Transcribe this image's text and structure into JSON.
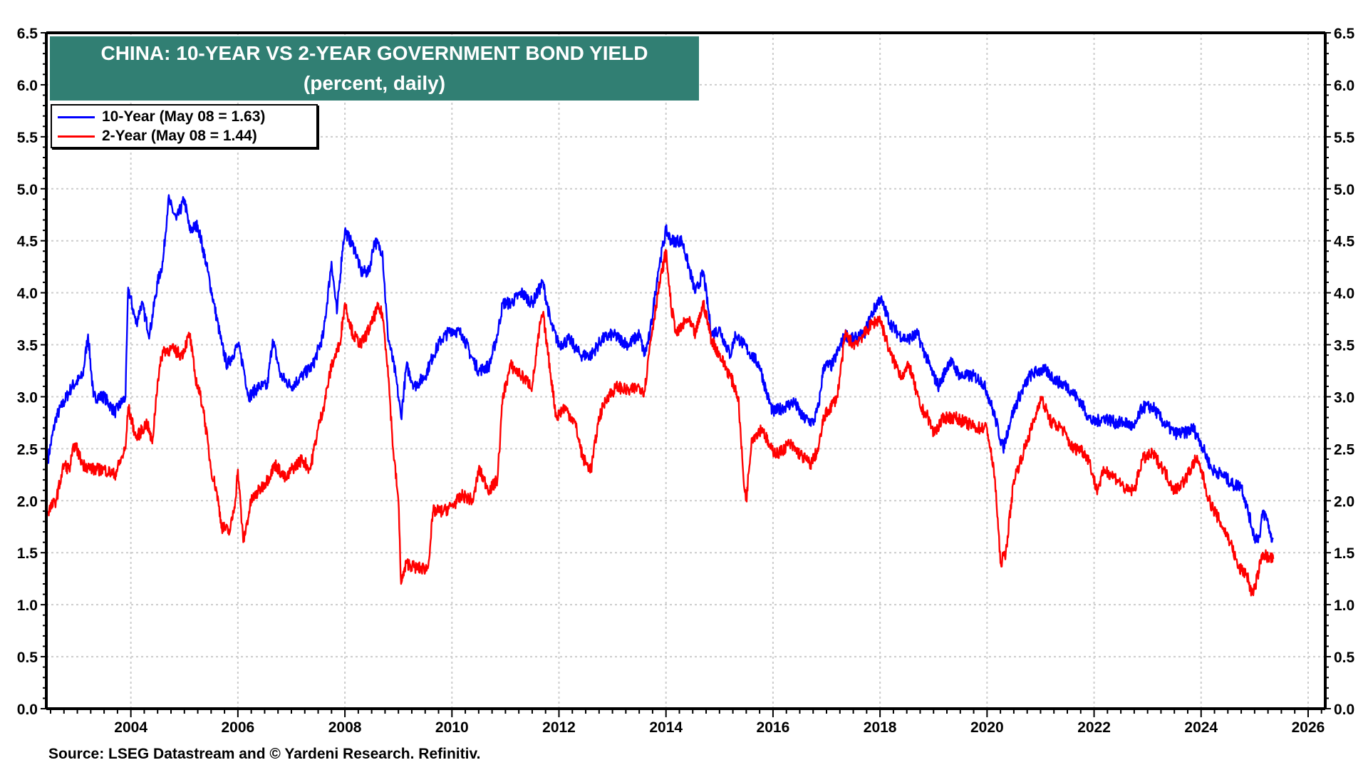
{
  "chart_data": {
    "type": "line",
    "title": "CHINA: 10-YEAR VS 2-YEAR GOVERNMENT BOND YIELD",
    "subtitle": "(percent, daily)",
    "xlabel": "",
    "ylabel": "",
    "xlim": [
      2002.42,
      2026.32
    ],
    "ylim": [
      0,
      6.5
    ],
    "x_ticks": [
      "2004",
      "2006",
      "2008",
      "2010",
      "2012",
      "2014",
      "2016",
      "2018",
      "2020",
      "2022",
      "2024",
      "2026"
    ],
    "y_ticks": [
      "0.0",
      "0.5",
      "1.0",
      "1.5",
      "2.0",
      "2.5",
      "3.0",
      "3.5",
      "4.0",
      "4.5",
      "5.0",
      "5.5",
      "6.0",
      "6.5"
    ],
    "grid": true,
    "legend_position": "top-left",
    "series": [
      {
        "name": "10-Year (May 08 = 1.63)",
        "color": "#0000ff",
        "x": [
          2002.45,
          2002.6,
          2002.9,
          2003.1,
          2003.2,
          2003.3,
          2003.5,
          2003.7,
          2003.9,
          2003.95,
          2004.1,
          2004.2,
          2004.35,
          2004.5,
          2004.6,
          2004.7,
          2004.85,
          2005.0,
          2005.1,
          2005.25,
          2005.4,
          2005.55,
          2005.7,
          2005.8,
          2006.0,
          2006.1,
          2006.2,
          2006.4,
          2006.55,
          2006.65,
          2006.8,
          2007.0,
          2007.2,
          2007.4,
          2007.6,
          2007.75,
          2007.85,
          2007.95,
          2008.0,
          2008.2,
          2008.3,
          2008.45,
          2008.55,
          2008.7,
          2008.8,
          2008.95,
          2009.05,
          2009.15,
          2009.3,
          2009.5,
          2009.65,
          2009.8,
          2010.0,
          2010.2,
          2010.35,
          2010.5,
          2010.7,
          2010.85,
          2010.95,
          2011.1,
          2011.3,
          2011.5,
          2011.7,
          2011.85,
          2012.0,
          2012.2,
          2012.4,
          2012.6,
          2012.8,
          2013.0,
          2013.3,
          2013.5,
          2013.6,
          2013.7,
          2013.85,
          2014.0,
          2014.1,
          2014.3,
          2014.45,
          2014.55,
          2014.7,
          2014.85,
          2015.0,
          2015.2,
          2015.3,
          2015.45,
          2015.6,
          2015.75,
          2015.9,
          2016.0,
          2016.2,
          2016.4,
          2016.55,
          2016.75,
          2016.85,
          2016.95,
          2017.1,
          2017.35,
          2017.5,
          2017.7,
          2017.85,
          2018.0,
          2018.2,
          2018.35,
          2018.5,
          2018.7,
          2018.85,
          2019.0,
          2019.1,
          2019.3,
          2019.5,
          2019.75,
          2019.9,
          2020.0,
          2020.15,
          2020.3,
          2020.45,
          2020.6,
          2020.8,
          2020.95,
          2021.1,
          2021.3,
          2021.5,
          2021.75,
          2021.9,
          2022.0,
          2022.2,
          2022.4,
          2022.6,
          2022.75,
          2022.9,
          2023.1,
          2023.3,
          2023.5,
          2023.7,
          2023.85,
          2024.0,
          2024.2,
          2024.4,
          2024.6,
          2024.75,
          2024.85,
          2025.0,
          2025.1,
          2025.15,
          2025.25,
          2025.3,
          2025.35
        ],
        "values": [
          2.4,
          2.8,
          3.1,
          3.2,
          3.6,
          3.0,
          3.0,
          2.85,
          3.0,
          4.05,
          3.7,
          3.9,
          3.6,
          4.1,
          4.3,
          4.9,
          4.7,
          4.9,
          4.6,
          4.65,
          4.3,
          3.9,
          3.5,
          3.3,
          3.5,
          3.3,
          3.0,
          3.1,
          3.1,
          3.55,
          3.2,
          3.1,
          3.2,
          3.3,
          3.6,
          4.3,
          3.8,
          4.4,
          4.6,
          4.4,
          4.2,
          4.2,
          4.5,
          4.4,
          3.6,
          3.2,
          2.8,
          3.3,
          3.1,
          3.2,
          3.4,
          3.55,
          3.65,
          3.6,
          3.4,
          3.25,
          3.3,
          3.6,
          3.9,
          3.9,
          4.0,
          3.9,
          4.1,
          3.7,
          3.5,
          3.55,
          3.4,
          3.4,
          3.55,
          3.6,
          3.5,
          3.6,
          3.4,
          3.6,
          4.2,
          4.6,
          4.5,
          4.5,
          4.2,
          4.0,
          4.2,
          3.6,
          3.65,
          3.4,
          3.6,
          3.5,
          3.4,
          3.3,
          3.0,
          2.85,
          2.9,
          2.95,
          2.8,
          2.75,
          2.9,
          3.3,
          3.3,
          3.6,
          3.55,
          3.6,
          3.8,
          3.95,
          3.7,
          3.6,
          3.55,
          3.6,
          3.4,
          3.2,
          3.1,
          3.35,
          3.2,
          3.2,
          3.15,
          3.05,
          2.8,
          2.5,
          2.8,
          3.0,
          3.2,
          3.25,
          3.25,
          3.15,
          3.1,
          2.95,
          2.8,
          2.75,
          2.8,
          2.75,
          2.75,
          2.7,
          2.9,
          2.9,
          2.75,
          2.65,
          2.65,
          2.7,
          2.55,
          2.3,
          2.25,
          2.15,
          2.15,
          1.95,
          1.65,
          1.65,
          1.9,
          1.8,
          1.65,
          1.63
        ]
      },
      {
        "name": "2-Year (May 08 = 1.44)",
        "color": "#ff0000",
        "x": [
          2002.45,
          2002.6,
          2002.75,
          2002.85,
          2002.95,
          2003.1,
          2003.3,
          2003.5,
          2003.7,
          2003.9,
          2003.95,
          2004.1,
          2004.3,
          2004.4,
          2004.5,
          2004.6,
          2004.8,
          2004.95,
          2005.1,
          2005.2,
          2005.35,
          2005.5,
          2005.6,
          2005.7,
          2005.85,
          2005.95,
          2006.0,
          2006.1,
          2006.25,
          2006.4,
          2006.55,
          2006.7,
          2006.9,
          2007.0,
          2007.2,
          2007.35,
          2007.5,
          2007.6,
          2007.75,
          2007.9,
          2008.0,
          2008.15,
          2008.3,
          2008.5,
          2008.6,
          2008.7,
          2008.8,
          2008.9,
          2009.0,
          2009.05,
          2009.15,
          2009.35,
          2009.55,
          2009.65,
          2009.85,
          2010.0,
          2010.2,
          2010.4,
          2010.5,
          2010.7,
          2010.85,
          2010.95,
          2011.1,
          2011.3,
          2011.5,
          2011.65,
          2011.7,
          2011.8,
          2011.95,
          2012.1,
          2012.3,
          2012.45,
          2012.6,
          2012.75,
          2012.9,
          2013.1,
          2013.3,
          2013.5,
          2013.6,
          2013.7,
          2013.85,
          2014.0,
          2014.1,
          2014.2,
          2014.4,
          2014.55,
          2014.7,
          2014.85,
          2015.0,
          2015.2,
          2015.35,
          2015.45,
          2015.5,
          2015.6,
          2015.8,
          2015.95,
          2016.1,
          2016.3,
          2016.5,
          2016.7,
          2016.85,
          2016.95,
          2017.2,
          2017.35,
          2017.5,
          2017.7,
          2017.85,
          2018.0,
          2018.2,
          2018.4,
          2018.55,
          2018.75,
          2018.9,
          2019.0,
          2019.2,
          2019.4,
          2019.6,
          2019.8,
          2020.0,
          2020.15,
          2020.25,
          2020.35,
          2020.5,
          2020.7,
          2020.9,
          2021.0,
          2021.2,
          2021.4,
          2021.6,
          2021.75,
          2021.9,
          2022.05,
          2022.2,
          2022.45,
          2022.6,
          2022.75,
          2022.9,
          2023.1,
          2023.3,
          2023.5,
          2023.7,
          2023.9,
          2024.0,
          2024.15,
          2024.35,
          2024.55,
          2024.7,
          2024.85,
          2024.95,
          2025.0,
          2025.15,
          2025.25,
          2025.35
        ],
        "values": [
          1.9,
          2.0,
          2.35,
          2.3,
          2.55,
          2.35,
          2.3,
          2.3,
          2.25,
          2.5,
          2.9,
          2.6,
          2.75,
          2.55,
          3.15,
          3.45,
          3.45,
          3.4,
          3.6,
          3.2,
          2.9,
          2.3,
          2.1,
          1.75,
          1.7,
          2.0,
          2.3,
          1.6,
          2.0,
          2.1,
          2.2,
          2.35,
          2.2,
          2.3,
          2.4,
          2.3,
          2.7,
          2.9,
          3.3,
          3.5,
          3.9,
          3.6,
          3.5,
          3.7,
          3.85,
          3.8,
          3.3,
          2.5,
          2.0,
          1.2,
          1.4,
          1.35,
          1.35,
          1.9,
          1.9,
          1.95,
          2.05,
          2.0,
          2.3,
          2.1,
          2.2,
          3.0,
          3.3,
          3.2,
          3.1,
          3.7,
          3.8,
          3.4,
          2.8,
          2.9,
          2.75,
          2.4,
          2.3,
          2.8,
          3.0,
          3.1,
          3.05,
          3.1,
          3.05,
          3.5,
          4.0,
          4.4,
          3.85,
          3.6,
          3.75,
          3.6,
          3.9,
          3.55,
          3.4,
          3.2,
          3.0,
          2.2,
          2.0,
          2.6,
          2.7,
          2.5,
          2.45,
          2.55,
          2.45,
          2.35,
          2.5,
          2.8,
          3.0,
          3.6,
          3.5,
          3.6,
          3.7,
          3.75,
          3.4,
          3.2,
          3.3,
          2.9,
          2.8,
          2.65,
          2.8,
          2.8,
          2.75,
          2.7,
          2.7,
          2.2,
          1.4,
          1.5,
          2.2,
          2.5,
          2.8,
          3.0,
          2.75,
          2.7,
          2.5,
          2.5,
          2.4,
          2.1,
          2.3,
          2.2,
          2.1,
          2.1,
          2.4,
          2.45,
          2.3,
          2.1,
          2.2,
          2.4,
          2.3,
          2.0,
          1.8,
          1.6,
          1.35,
          1.3,
          1.1,
          1.15,
          1.5,
          1.45,
          1.44
        ]
      }
    ]
  },
  "source": "Source: LSEG Datastream and © Yardeni Research. Refinitiv."
}
